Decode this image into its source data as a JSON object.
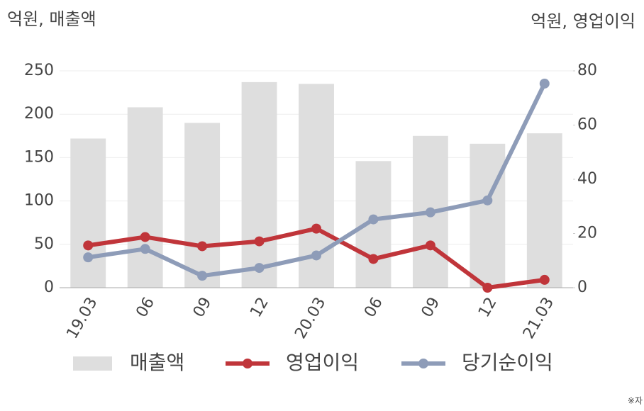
{
  "chart_data": {
    "type": "bar",
    "ylabel": "억원, 매출액",
    "y2label": "억원, 영업이익",
    "footnote": "※자",
    "categories": [
      "19.03",
      "06",
      "09",
      "12",
      "20.03",
      "06",
      "09",
      "12",
      "21.03"
    ],
    "series": [
      {
        "name": "매출액",
        "type": "bar",
        "color": "#dedede",
        "values": [
          172,
          208,
          190,
          237,
          235,
          146,
          175,
          166,
          178
        ]
      },
      {
        "name": "영업이익",
        "type": "line",
        "axis": "y2",
        "color": "#c0353a",
        "values": [
          15.6,
          18.7,
          15.3,
          17.1,
          21.8,
          10.6,
          15.6,
          0,
          2.9
        ]
      },
      {
        "name": "당기순이익",
        "type": "line",
        "axis": "y2",
        "color": "#8e9cb8",
        "values": [
          11.2,
          14.3,
          4.4,
          7.3,
          11.9,
          25.2,
          27.8,
          32.2,
          75.3
        ]
      }
    ],
    "ylim": [
      0,
      250
    ],
    "yticks": [
      0,
      50,
      100,
      150,
      200,
      250
    ],
    "y2lim": [
      0,
      80
    ],
    "y2ticks": [
      0,
      20,
      40,
      60,
      80
    ],
    "grid": true
  }
}
